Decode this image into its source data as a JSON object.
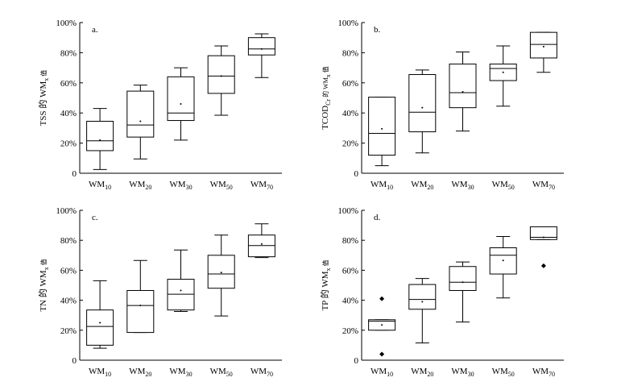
{
  "chart_data": [
    {
      "type": "box",
      "panel_label": "a.",
      "ylabel": {
        "pre": "TSS 的 WM",
        "sub": "x",
        "post": " 值"
      },
      "ylim": [
        0,
        100
      ],
      "yticks": [
        "0",
        "20%",
        "40%",
        "60%",
        "80%",
        "100%"
      ],
      "categories": [
        {
          "base": "WM",
          "sub": "10"
        },
        {
          "base": "WM",
          "sub": "20"
        },
        {
          "base": "WM",
          "sub": "30"
        },
        {
          "base": "WM",
          "sub": "50"
        },
        {
          "base": "WM",
          "sub": "70"
        }
      ],
      "boxes": [
        {
          "min": 2.5,
          "q1": 15,
          "median": 21.5,
          "q3": 34.5,
          "max": 43,
          "mean": 22,
          "outliers": []
        },
        {
          "min": 9.5,
          "q1": 24,
          "median": 32,
          "q3": 54.5,
          "max": 58.5,
          "mean": 34.5,
          "outliers": []
        },
        {
          "min": 22,
          "q1": 35,
          "median": 40,
          "q3": 64,
          "max": 70,
          "mean": 46,
          "outliers": []
        },
        {
          "min": 38.5,
          "q1": 53,
          "median": 64.5,
          "q3": 78,
          "max": 84.5,
          "mean": 64.5,
          "outliers": []
        },
        {
          "min": 63.5,
          "q1": 78.5,
          "median": 82.5,
          "q3": 90,
          "max": 92.5,
          "mean": 82.5,
          "outliers": []
        }
      ]
    },
    {
      "type": "box",
      "panel_label": "b.",
      "ylabel": {
        "pre": "TCOD",
        "sub": "Cr",
        "post": " 的 WM",
        "sub2": "x",
        "post2": " 值"
      },
      "ylim": [
        0,
        100
      ],
      "yticks": [
        "0",
        "20%",
        "40%",
        "60%",
        "80%",
        "100%"
      ],
      "categories": [
        {
          "base": "WM",
          "sub": "10"
        },
        {
          "base": "WM",
          "sub": "20"
        },
        {
          "base": "WM",
          "sub": "30"
        },
        {
          "base": "WM",
          "sub": "50"
        },
        {
          "base": "WM",
          "sub": "70"
        }
      ],
      "boxes": [
        {
          "min": 5,
          "q1": 12,
          "median": 26.5,
          "q3": 50.5,
          "max": 50.5,
          "mean": 29.5,
          "outliers": []
        },
        {
          "min": 13.5,
          "q1": 27.5,
          "median": 40.5,
          "q3": 65.5,
          "max": 68.5,
          "mean": 43.5,
          "outliers": []
        },
        {
          "min": 28,
          "q1": 43.5,
          "median": 53.5,
          "q3": 72.5,
          "max": 80.5,
          "mean": 54,
          "outliers": []
        },
        {
          "min": 44.5,
          "q1": 61.5,
          "median": 69.5,
          "q3": 72.5,
          "max": 84.5,
          "mean": 67,
          "outliers": []
        },
        {
          "min": 67,
          "q1": 76.5,
          "median": 85.5,
          "q3": 93.5,
          "max": 93.5,
          "mean": 84,
          "outliers": []
        }
      ]
    },
    {
      "type": "box",
      "panel_label": "c.",
      "ylabel": {
        "pre": "TN 的 WM",
        "sub": "x",
        "post": " 值"
      },
      "ylim": [
        0,
        100
      ],
      "yticks": [
        "0",
        "20%",
        "40%",
        "60%",
        "80%",
        "100%"
      ],
      "categories": [
        {
          "base": "WM",
          "sub": "10"
        },
        {
          "base": "WM",
          "sub": "20"
        },
        {
          "base": "WM",
          "sub": "30"
        },
        {
          "base": "WM",
          "sub": "50"
        },
        {
          "base": "WM",
          "sub": "70"
        }
      ],
      "boxes": [
        {
          "min": 8,
          "q1": 10,
          "median": 22.5,
          "q3": 33.5,
          "max": 53,
          "mean": 25,
          "outliers": []
        },
        {
          "min": 18.5,
          "q1": 18.5,
          "median": 36.5,
          "q3": 46.5,
          "max": 66.5,
          "mean": 36.5,
          "outliers": []
        },
        {
          "min": 32.5,
          "q1": 33.5,
          "median": 44,
          "q3": 54,
          "max": 73.5,
          "mean": 46.5,
          "outliers": []
        },
        {
          "min": 29.5,
          "q1": 48,
          "median": 57.5,
          "q3": 70,
          "max": 83.5,
          "mean": 58.5,
          "outliers": []
        },
        {
          "min": 68.5,
          "q1": 69,
          "median": 76.5,
          "q3": 83.5,
          "max": 91,
          "mean": 77.5,
          "outliers": []
        }
      ]
    },
    {
      "type": "box",
      "panel_label": "d.",
      "ylabel": {
        "pre": "TP 的 WM",
        "sub": "x",
        "post": " 值"
      },
      "ylim": [
        0,
        100
      ],
      "yticks": [
        "0",
        "20%",
        "40%",
        "60%",
        "80%",
        "100%"
      ],
      "categories": [
        {
          "base": "WM",
          "sub": "10"
        },
        {
          "base": "WM",
          "sub": "20"
        },
        {
          "base": "WM",
          "sub": "30"
        },
        {
          "base": "WM",
          "sub": "50"
        },
        {
          "base": "WM",
          "sub": "70"
        }
      ],
      "boxes": [
        {
          "min": 20,
          "q1": 20,
          "median": 26,
          "q3": 27,
          "max": 27,
          "mean": 23.5,
          "outliers": [
            41,
            4
          ]
        },
        {
          "min": 11.5,
          "q1": 34,
          "median": 40.5,
          "q3": 50.5,
          "max": 54.5,
          "mean": 39,
          "outliers": []
        },
        {
          "min": 25.5,
          "q1": 46.5,
          "median": 52,
          "q3": 62.5,
          "max": 65.5,
          "mean": 52,
          "outliers": []
        },
        {
          "min": 41.5,
          "q1": 57.5,
          "median": 70,
          "q3": 75,
          "max": 82.5,
          "mean": 66.5,
          "outliers": []
        },
        {
          "min": 80.5,
          "q1": 80.5,
          "median": 82,
          "q3": 89,
          "max": 89,
          "mean": 82,
          "outliers": [
            63
          ]
        }
      ]
    }
  ]
}
